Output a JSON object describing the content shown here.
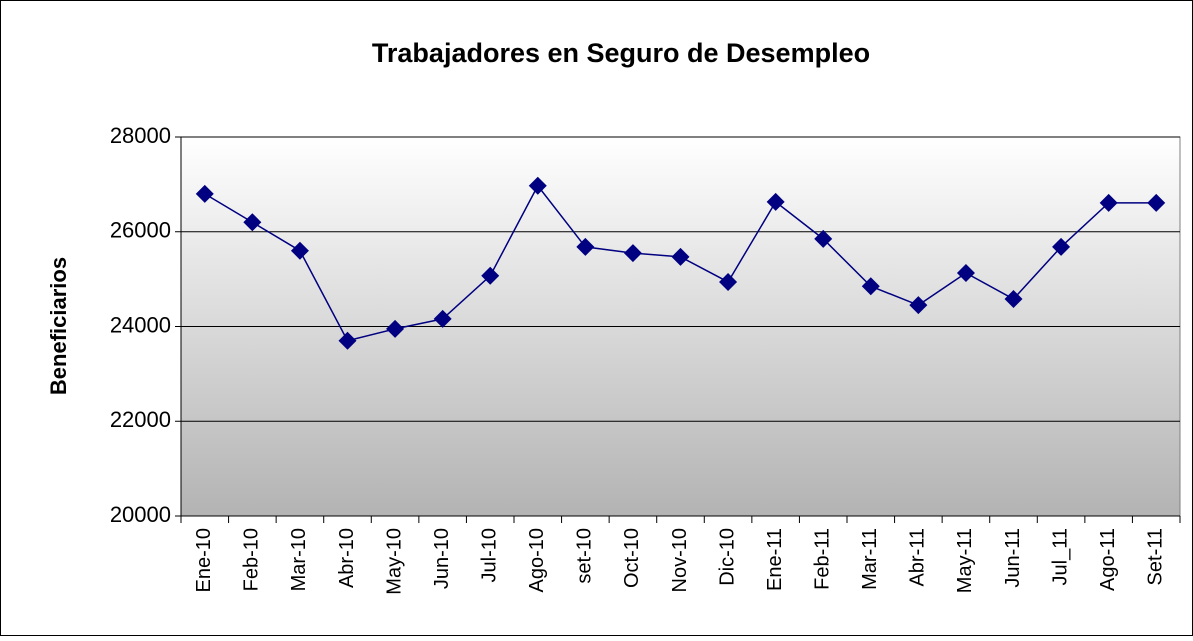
{
  "chart_data": {
    "type": "line",
    "title": "Trabajadores en Seguro de Desempleo",
    "y_label": "Beneficiarios",
    "categories": [
      "Ene-10",
      "Feb-10",
      "Mar-10",
      "Abr-10",
      "May-10",
      "Jun-10",
      "Jul-10",
      "Ago-10",
      "set-10",
      "Oct-10",
      "Nov-10",
      "Dic-10",
      "Ene-11",
      "Feb-11",
      "Mar-11",
      "Abr-11",
      "May-11",
      "Jun-11",
      "Jul_11",
      "Ago-11",
      "Set-11"
    ],
    "series": [
      {
        "name": "Beneficiarios",
        "color": "#000080",
        "values": [
          26800,
          26200,
          25600,
          23700,
          23950,
          24160,
          25070,
          26970,
          25680,
          25550,
          25470,
          24940,
          26630,
          25850,
          24850,
          24450,
          25130,
          24580,
          25680,
          26610,
          26610
        ]
      }
    ],
    "ylim": [
      20000,
      28000
    ],
    "yticks": [
      20000,
      22000,
      24000,
      26000,
      28000
    ],
    "grid": true
  }
}
